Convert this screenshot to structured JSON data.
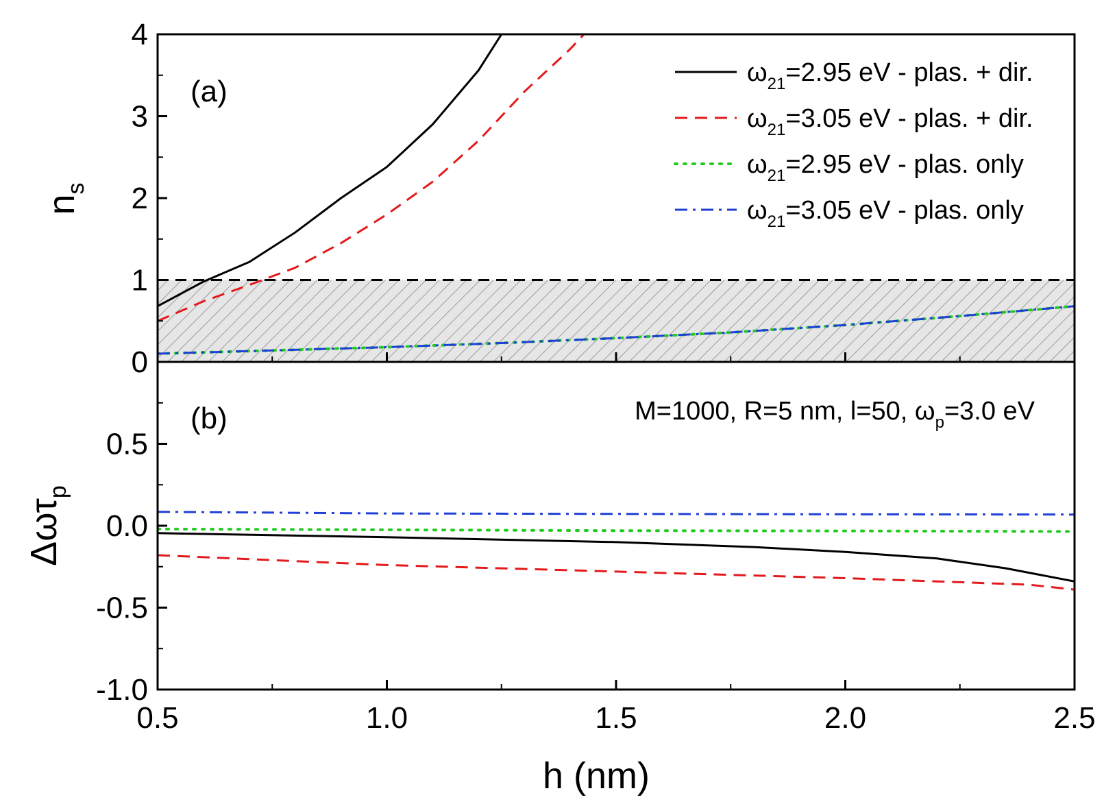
{
  "chart_data": [
    {
      "panel": "(a)",
      "type": "line",
      "xlabel": "h (nm)",
      "ylabel": {
        "main": "n",
        "sub": "s"
      },
      "xlim": [
        0.5,
        2.5
      ],
      "ylim": [
        0,
        4
      ],
      "x_ticks": [
        "0.5",
        "1.0",
        "1.5",
        "2.0",
        "2.5"
      ],
      "y_ticks": [
        "0",
        "1",
        "2",
        "3",
        "4"
      ],
      "threshold": 1,
      "shaded_region": [
        0,
        1
      ],
      "legend_position": "top-right",
      "series": [
        {
          "name": {
            "main": "ω",
            "sub": "21",
            "rest": "=2.95 eV - plas. + dir."
          },
          "style": "solid",
          "color": "#000000",
          "x": [
            0.5,
            0.6,
            0.7,
            0.8,
            0.9,
            1.0,
            1.1,
            1.2,
            1.25
          ],
          "y": [
            0.68,
            0.98,
            1.22,
            1.58,
            2.0,
            2.38,
            2.9,
            3.56,
            4.0
          ]
        },
        {
          "name": {
            "main": "ω",
            "sub": "21",
            "rest": "=3.05 eV - plas. + dir."
          },
          "style": "dashed",
          "color": "#e31a1c",
          "x": [
            0.5,
            0.6,
            0.7,
            0.8,
            0.9,
            1.0,
            1.1,
            1.2,
            1.3,
            1.4,
            1.43
          ],
          "y": [
            0.5,
            0.74,
            0.94,
            1.15,
            1.45,
            1.8,
            2.2,
            2.7,
            3.3,
            3.82,
            4.0
          ]
        },
        {
          "name": {
            "main": "ω",
            "sub": "21",
            "rest": "=2.95 eV - plas. only"
          },
          "style": "dotted",
          "color": "#22cc22",
          "x": [
            0.5,
            0.75,
            1.0,
            1.25,
            1.5,
            1.75,
            2.0,
            2.25,
            2.5
          ],
          "y": [
            0.1,
            0.14,
            0.18,
            0.23,
            0.29,
            0.36,
            0.45,
            0.56,
            0.68
          ]
        },
        {
          "name": {
            "main": "ω",
            "sub": "21",
            "rest": "=3.05 eV - plas. only"
          },
          "style": "dashdot",
          "color": "#1f3fd6",
          "x": [
            0.5,
            0.75,
            1.0,
            1.25,
            1.5,
            1.75,
            2.0,
            2.25,
            2.5
          ],
          "y": [
            0.1,
            0.14,
            0.18,
            0.23,
            0.29,
            0.36,
            0.45,
            0.56,
            0.68
          ]
        }
      ]
    },
    {
      "panel": "(b)",
      "type": "line",
      "xlabel": "h (nm)",
      "ylabel": {
        "main": "Δωτ",
        "sub": "p"
      },
      "xlim": [
        0.5,
        2.5
      ],
      "ylim": [
        -1.0,
        1.0
      ],
      "y_ticks": [
        "-1.0",
        "-0.5",
        "0.0",
        "0.5"
      ],
      "annotation": {
        "main": "M=1000, R=5 nm, l=50, ω",
        "sub": "p",
        "rest": "=3.0 eV"
      },
      "series": [
        {
          "style": "solid",
          "color": "#000000",
          "x": [
            0.5,
            1.0,
            1.5,
            1.8,
            2.0,
            2.2,
            2.35,
            2.5
          ],
          "y": [
            -0.045,
            -0.07,
            -0.1,
            -0.13,
            -0.16,
            -0.2,
            -0.26,
            -0.34
          ]
        },
        {
          "style": "dashed",
          "color": "#e31a1c",
          "x": [
            0.5,
            1.0,
            1.5,
            2.0,
            2.4,
            2.5
          ],
          "y": [
            -0.18,
            -0.24,
            -0.28,
            -0.32,
            -0.36,
            -0.39
          ]
        },
        {
          "style": "dotted",
          "color": "#22cc22",
          "x": [
            0.5,
            1.0,
            1.5,
            2.0,
            2.5
          ],
          "y": [
            -0.02,
            -0.025,
            -0.03,
            -0.032,
            -0.035
          ]
        },
        {
          "style": "dashdot",
          "color": "#1f3fd6",
          "x": [
            0.5,
            1.0,
            1.5,
            2.0,
            2.5
          ],
          "y": [
            0.085,
            0.075,
            0.072,
            0.07,
            0.068
          ]
        }
      ]
    }
  ]
}
